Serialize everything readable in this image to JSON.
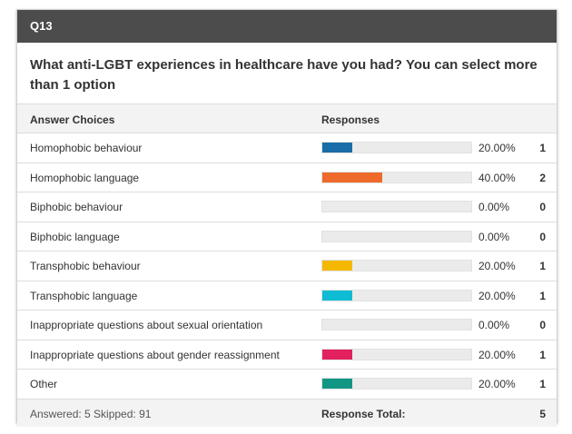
{
  "question_id": "Q13",
  "question_text": "What anti-LGBT experiences in healthcare have you had? You can select more than 1 option",
  "headers": {
    "choices": "Answer Choices",
    "responses": "Responses"
  },
  "rows": [
    {
      "label": "Homophobic behaviour",
      "percent": "20.00%",
      "fraction": 0.2,
      "count": "1",
      "color": "#1a6ea8"
    },
    {
      "label": "Homophobic language",
      "percent": "40.00%",
      "fraction": 0.4,
      "count": "2",
      "color": "#ed6a2b"
    },
    {
      "label": "Biphobic behaviour",
      "percent": "0.00%",
      "fraction": 0.0,
      "count": "0",
      "color": "#999999"
    },
    {
      "label": "Biphobic language",
      "percent": "0.00%",
      "fraction": 0.0,
      "count": "0",
      "color": "#999999"
    },
    {
      "label": "Transphobic behaviour",
      "percent": "20.00%",
      "fraction": 0.2,
      "count": "1",
      "color": "#f5b800"
    },
    {
      "label": "Transphobic language",
      "percent": "20.00%",
      "fraction": 0.2,
      "count": "1",
      "color": "#0fbcd4"
    },
    {
      "label": "Inappropriate questions about sexual orientation",
      "percent": "0.00%",
      "fraction": 0.0,
      "count": "0",
      "color": "#999999"
    },
    {
      "label": "Inappropriate questions about gender reassignment",
      "percent": "20.00%",
      "fraction": 0.2,
      "count": "1",
      "color": "#e3215f"
    },
    {
      "label": "Other",
      "percent": "20.00%",
      "fraction": 0.2,
      "count": "1",
      "color": "#129684"
    }
  ],
  "footer": {
    "summary": "Answered: 5  Skipped: 91",
    "total_label": "Response Total:",
    "total": "5"
  }
}
